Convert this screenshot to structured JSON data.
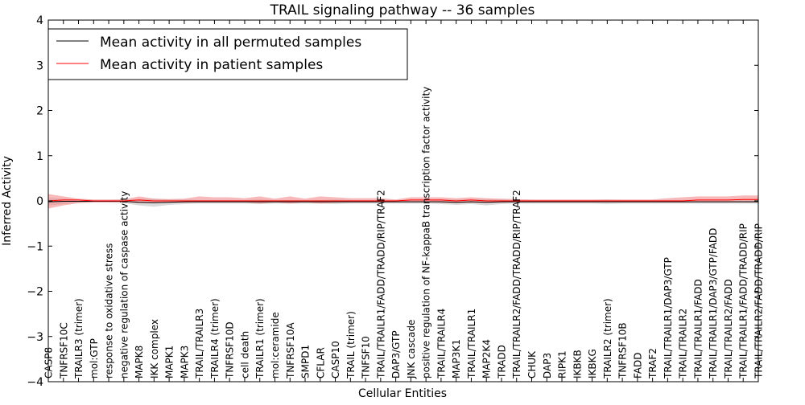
{
  "chart_data": {
    "type": "line",
    "title": "TRAIL signaling pathway -- 36 samples",
    "xlabel": "Cellular Entities",
    "ylabel": "Inferred Activity",
    "ylim": [
      -4,
      4
    ],
    "yticks": [
      -4,
      -3,
      -2,
      -1,
      0,
      1,
      2,
      3,
      4
    ],
    "grid": false,
    "legend_position": "top-left",
    "categories": [
      "CASP8",
      "TNFRSF10C",
      "TRAILR3 (trimer)",
      "mol:GTP",
      "response to oxidative stress",
      "negative regulation of caspase activity",
      "MAPK8",
      "IKK complex",
      "MAPK1",
      "MAPK3",
      "TRAIL/TRAILR3",
      "TRAILR4 (trimer)",
      "TNFRSF10D",
      "cell death",
      "TRAILR1 (trimer)",
      "mol:ceramide",
      "TNFRSF10A",
      "SMPD1",
      "CFLAR",
      "CASP10",
      "TRAIL (trimer)",
      "TNFSF10",
      "TRAIL/TRAILR1/FADD/TRADD/RIP/TRAF2",
      "DAP3/GTP",
      "JNK cascade",
      "positive regulation of NF-kappaB transcription factor activity",
      "TRAIL/TRAILR4",
      "MAP3K1",
      "TRAIL/TRAILR1",
      "MAP2K4",
      "TRADD",
      "TRAIL/TRAILR2/FADD/TRADD/RIP/TRAF2",
      "CHUK",
      "DAP3",
      "RIPK1",
      "IKBKB",
      "IKBKG",
      "TRAILR2 (trimer)",
      "TNFRSF10B",
      "FADD",
      "TRAF2",
      "TRAIL/TRAILR1/DAP3/GTP",
      "TRAIL/TRAILR2",
      "TRAIL/TRAILR1/FADD",
      "TRAIL/TRAILR1/DAP3/GTP/FADD",
      "TRAIL/TRAILR2/FADD",
      "TRAIL/TRAILR1/FADD/TRADD/RIP",
      "TRAIL/TRAILR2/FADD/TRADD/RIP"
    ],
    "series": [
      {
        "name": "Mean activity in all permuted samples",
        "color": "#000000",
        "band_color": "#999999",
        "values": [
          -0.02,
          -0.01,
          -0.01,
          -0.01,
          -0.01,
          -0.01,
          -0.03,
          -0.04,
          -0.03,
          -0.02,
          -0.02,
          -0.02,
          -0.02,
          -0.02,
          -0.02,
          -0.02,
          -0.02,
          -0.02,
          -0.02,
          -0.02,
          -0.02,
          -0.02,
          -0.02,
          -0.02,
          -0.02,
          -0.02,
          -0.02,
          -0.03,
          -0.02,
          -0.03,
          -0.02,
          -0.02,
          -0.02,
          -0.02,
          -0.02,
          -0.02,
          -0.02,
          -0.02,
          -0.02,
          -0.02,
          -0.02,
          -0.02,
          -0.02,
          -0.02,
          -0.02,
          -0.02,
          -0.02,
          -0.02
        ],
        "lower": [
          -0.1,
          -0.07,
          -0.05,
          -0.04,
          -0.04,
          -0.05,
          -0.1,
          -0.13,
          -0.09,
          -0.07,
          -0.06,
          -0.06,
          -0.06,
          -0.06,
          -0.07,
          -0.06,
          -0.06,
          -0.06,
          -0.06,
          -0.07,
          -0.06,
          -0.06,
          -0.06,
          -0.06,
          -0.06,
          -0.06,
          -0.07,
          -0.09,
          -0.07,
          -0.1,
          -0.07,
          -0.06,
          -0.06,
          -0.06,
          -0.06,
          -0.06,
          -0.06,
          -0.07,
          -0.06,
          -0.06,
          -0.06,
          -0.06,
          -0.06,
          -0.06,
          -0.06,
          -0.06,
          -0.06,
          -0.06
        ],
        "upper": [
          0.06,
          0.05,
          0.03,
          0.02,
          0.02,
          0.03,
          0.04,
          0.05,
          0.03,
          0.03,
          0.02,
          0.02,
          0.02,
          0.02,
          0.03,
          0.02,
          0.02,
          0.02,
          0.02,
          0.03,
          0.02,
          0.02,
          0.02,
          0.02,
          0.02,
          0.02,
          0.03,
          0.03,
          0.03,
          0.04,
          0.03,
          0.02,
          0.02,
          0.02,
          0.02,
          0.02,
          0.02,
          0.03,
          0.02,
          0.02,
          0.02,
          0.02,
          0.02,
          0.02,
          0.02,
          0.02,
          0.02,
          0.02
        ]
      },
      {
        "name": "Mean activity in patient samples",
        "color": "#ff0000",
        "band_color": "#f08080",
        "values": [
          0.0,
          0.02,
          0.02,
          0.0,
          0.0,
          0.0,
          0.02,
          0.0,
          0.0,
          0.0,
          0.0,
          0.0,
          0.0,
          0.0,
          0.0,
          0.0,
          0.0,
          0.0,
          0.0,
          0.0,
          0.0,
          0.0,
          0.0,
          0.0,
          0.02,
          0.02,
          0.02,
          0.0,
          0.02,
          0.0,
          0.0,
          0.0,
          0.0,
          0.0,
          0.0,
          0.0,
          0.0,
          0.0,
          0.0,
          0.0,
          0.0,
          0.0,
          0.0,
          0.02,
          0.02,
          0.02,
          0.03,
          0.03
        ],
        "lower": [
          -0.17,
          -0.1,
          -0.05,
          -0.03,
          -0.03,
          -0.03,
          -0.05,
          -0.05,
          -0.04,
          -0.04,
          -0.03,
          -0.03,
          -0.03,
          -0.03,
          -0.06,
          -0.03,
          -0.06,
          -0.03,
          -0.06,
          -0.04,
          -0.03,
          -0.03,
          -0.03,
          -0.03,
          -0.03,
          -0.03,
          -0.04,
          -0.05,
          -0.04,
          -0.05,
          -0.04,
          -0.03,
          -0.03,
          -0.03,
          -0.03,
          -0.03,
          -0.03,
          -0.03,
          -0.03,
          -0.03,
          -0.03,
          -0.03,
          -0.03,
          -0.03,
          -0.03,
          -0.03,
          -0.03,
          -0.03
        ],
        "upper": [
          0.15,
          0.1,
          0.05,
          0.03,
          0.03,
          0.03,
          0.1,
          0.05,
          0.04,
          0.05,
          0.1,
          0.08,
          0.08,
          0.06,
          0.1,
          0.05,
          0.1,
          0.05,
          0.1,
          0.08,
          0.06,
          0.06,
          0.06,
          0.03,
          0.08,
          0.08,
          0.08,
          0.06,
          0.08,
          0.06,
          0.05,
          0.04,
          0.03,
          0.03,
          0.03,
          0.03,
          0.03,
          0.03,
          0.03,
          0.03,
          0.03,
          0.06,
          0.08,
          0.1,
          0.1,
          0.1,
          0.12,
          0.12
        ]
      }
    ]
  }
}
